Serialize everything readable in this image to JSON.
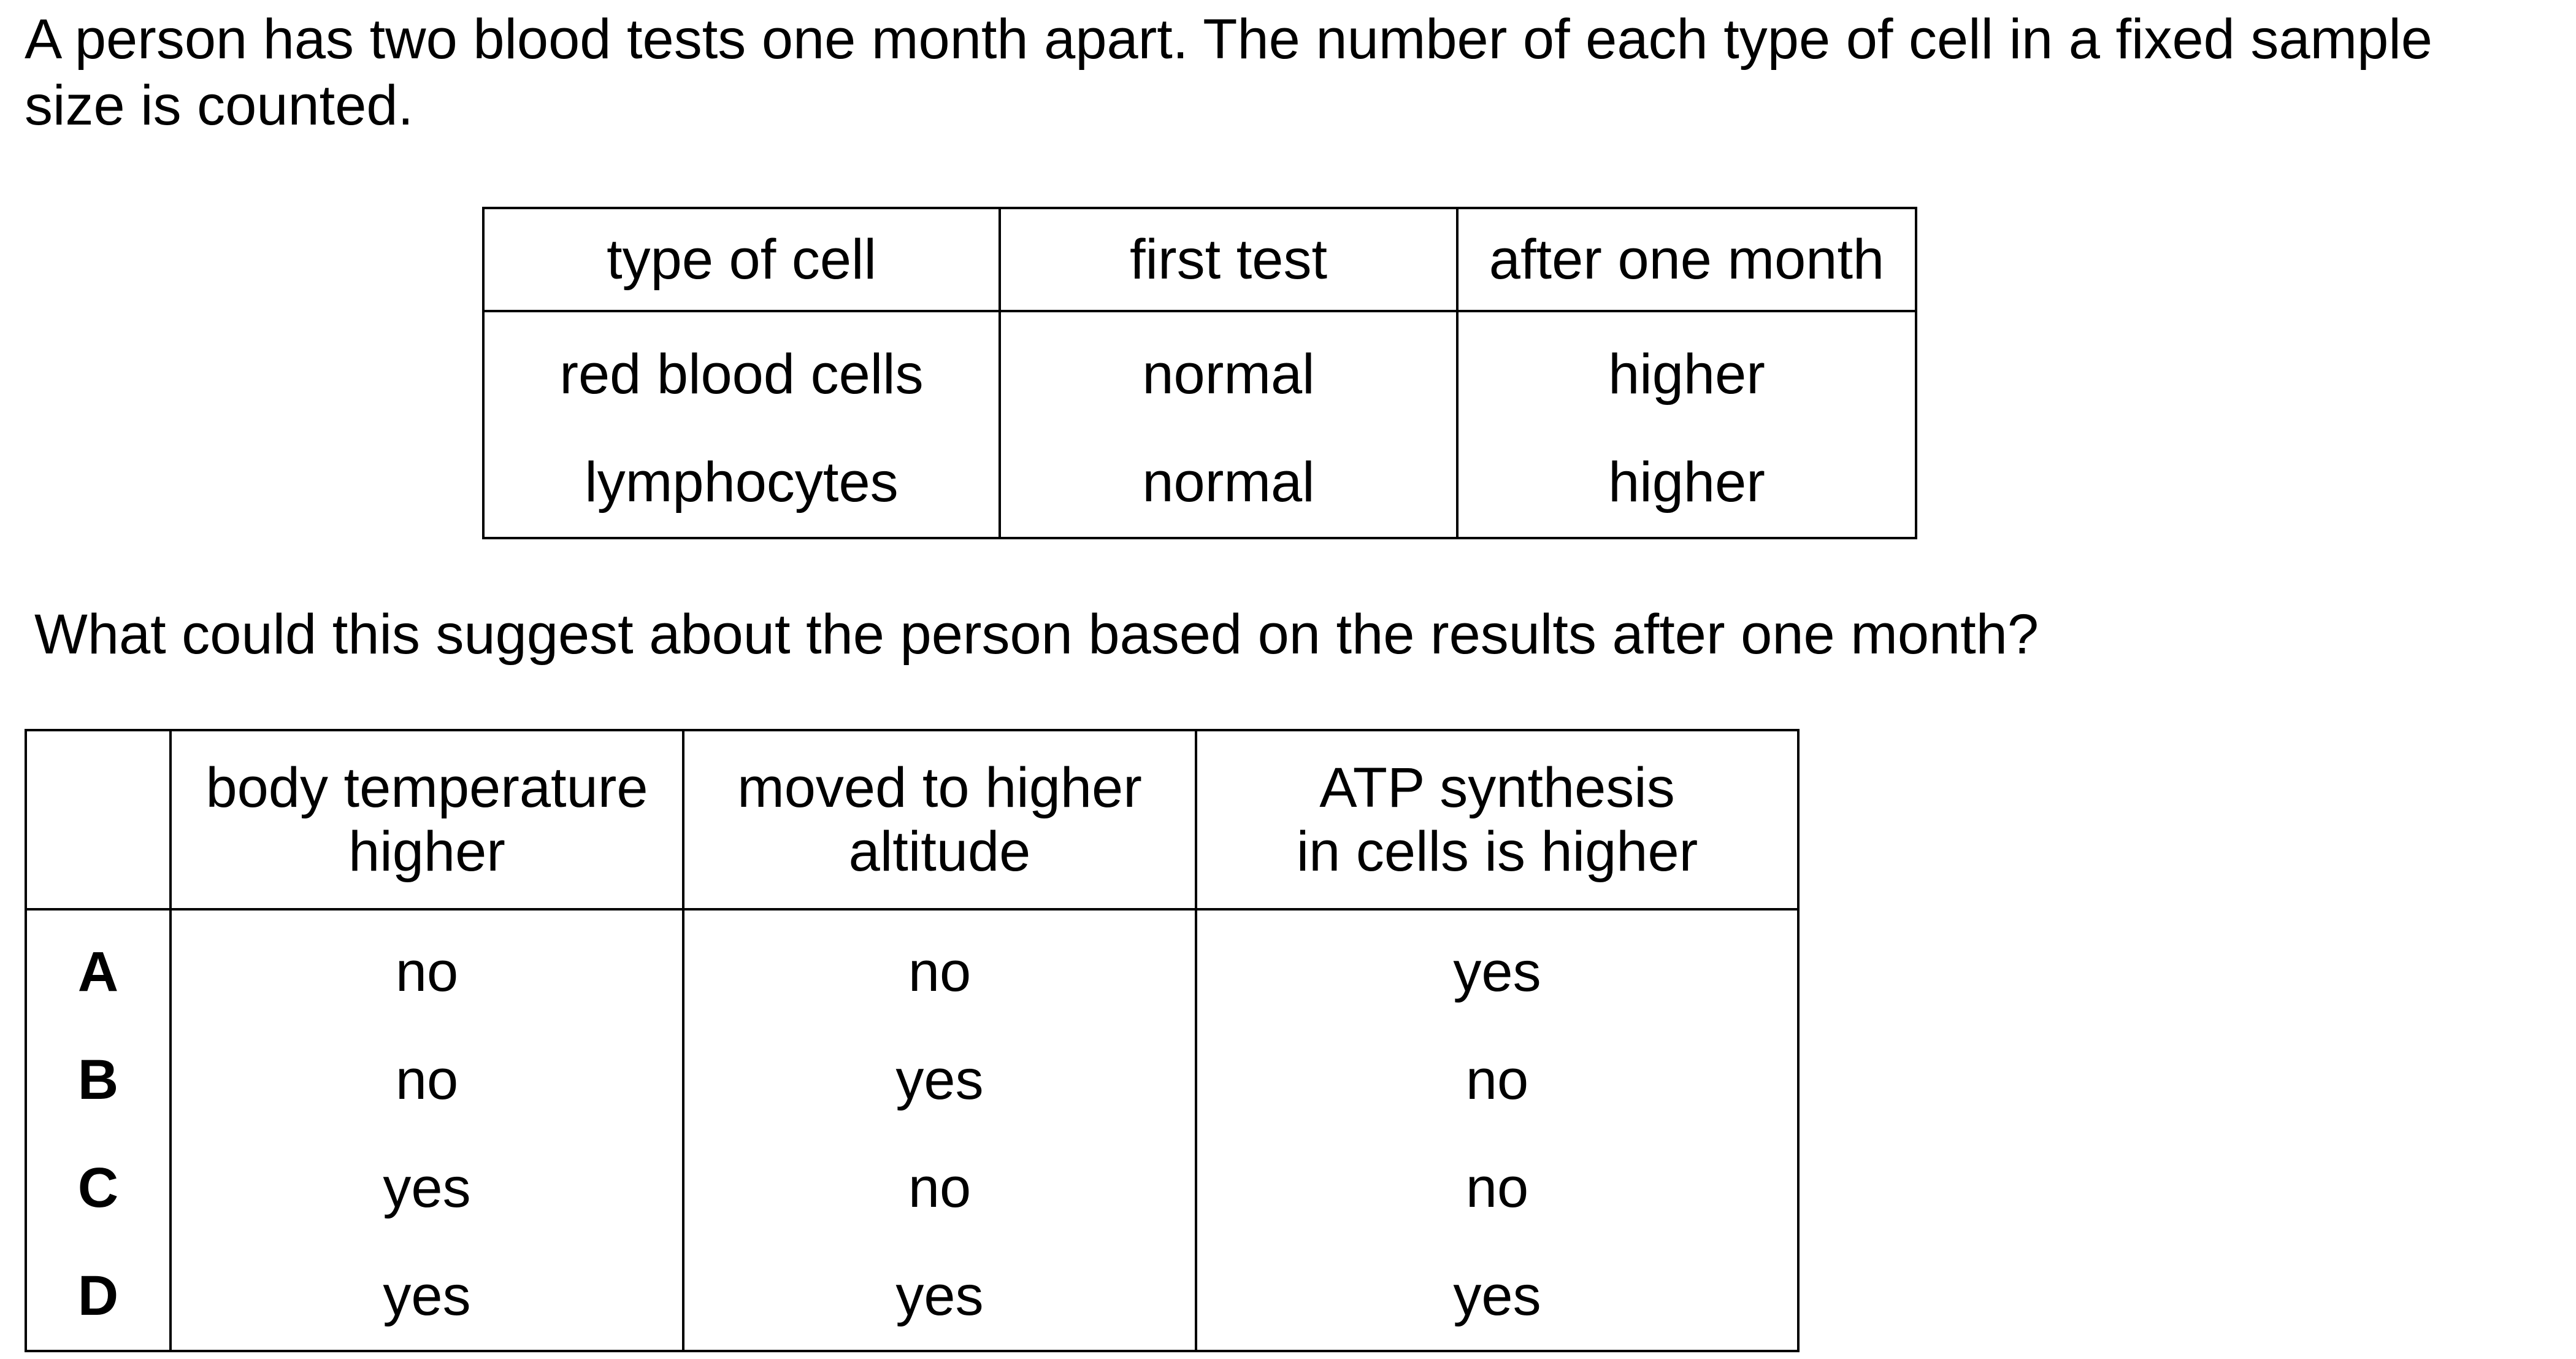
{
  "stem": "A person has two blood tests one month apart. The number of each type of cell in a fixed sample size is counted.",
  "blood_table": {
    "headers": [
      "type of cell",
      "first test",
      "after one month"
    ],
    "rows": [
      [
        "red blood cells",
        "normal",
        "higher"
      ],
      [
        "lymphocytes",
        "normal",
        "higher"
      ]
    ]
  },
  "question": "What could this suggest about the person based on the results after one month?",
  "options_table": {
    "headers": [
      "",
      "body temperature higher",
      "moved to higher altitude",
      "ATP synthesis in cells is higher"
    ],
    "header_lines": [
      [
        "body temperature",
        "higher"
      ],
      [
        "moved to higher",
        "altitude"
      ],
      [
        "ATP synthesis",
        "in cells is higher"
      ]
    ],
    "rows": [
      {
        "letter": "A",
        "values": [
          "no",
          "no",
          "yes"
        ]
      },
      {
        "letter": "B",
        "values": [
          "no",
          "yes",
          "no"
        ]
      },
      {
        "letter": "C",
        "values": [
          "yes",
          "no",
          "no"
        ]
      },
      {
        "letter": "D",
        "values": [
          "yes",
          "yes",
          "yes"
        ]
      }
    ]
  }
}
